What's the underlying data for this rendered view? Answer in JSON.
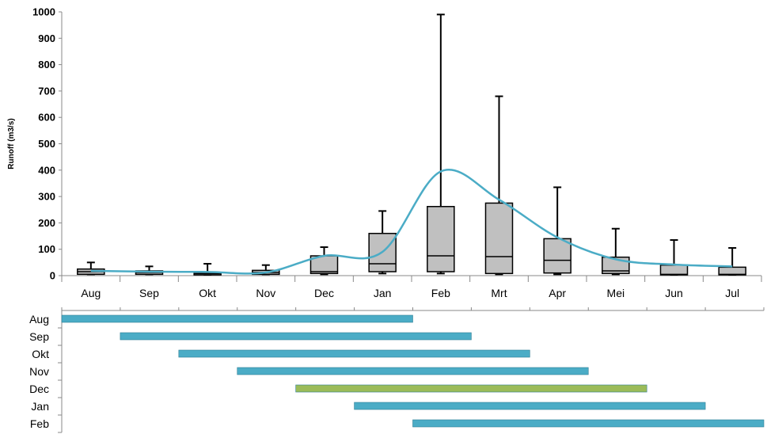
{
  "chart_data": [
    {
      "type": "boxplot",
      "ylabel": "Runoff (m3/s)",
      "ylim": [
        0,
        1000
      ],
      "yticks": [
        0,
        100,
        200,
        300,
        400,
        500,
        600,
        700,
        800,
        900,
        1000
      ],
      "grid": false,
      "categories": [
        "Aug",
        "Sep",
        "Okt",
        "Nov",
        "Dec",
        "Jan",
        "Feb",
        "Mrt",
        "Apr",
        "Mei",
        "Jun",
        "Jul"
      ],
      "boxes": [
        {
          "min": 5,
          "q1": 5,
          "median": 15,
          "q3": 25,
          "max": 50
        },
        {
          "min": 5,
          "q1": 5,
          "median": 12,
          "q3": 18,
          "max": 35
        },
        {
          "min": 3,
          "q1": 3,
          "median": 8,
          "q3": 12,
          "max": 45
        },
        {
          "min": 5,
          "q1": 5,
          "median": 12,
          "q3": 20,
          "max": 40
        },
        {
          "min": 5,
          "q1": 8,
          "median": 15,
          "q3": 75,
          "max": 108
        },
        {
          "min": 8,
          "q1": 15,
          "median": 45,
          "q3": 160,
          "max": 245
        },
        {
          "min": 8,
          "q1": 15,
          "median": 75,
          "q3": 262,
          "max": 990
        },
        {
          "min": 5,
          "q1": 8,
          "median": 72,
          "q3": 275,
          "max": 680
        },
        {
          "min": 5,
          "q1": 10,
          "median": 58,
          "q3": 140,
          "max": 335
        },
        {
          "min": 5,
          "q1": 8,
          "median": 18,
          "q3": 70,
          "max": 178
        },
        {
          "min": 3,
          "q1": 3,
          "median": 5,
          "q3": 40,
          "max": 135
        },
        {
          "min": 3,
          "q1": 3,
          "median": 5,
          "q3": 32,
          "max": 105
        }
      ],
      "mean_line": {
        "color": "#4bacc6",
        "values": [
          18,
          15,
          14,
          12,
          75,
          90,
          395,
          288,
          145,
          62,
          42,
          35
        ]
      },
      "box_fill": "#c0c0c0",
      "box_stroke": "#000000"
    },
    {
      "type": "gantt",
      "rows": [
        {
          "label": "Aug",
          "start": 0,
          "end": 6,
          "color": "#4bacc6"
        },
        {
          "label": "Sep",
          "start": 1,
          "end": 7,
          "color": "#4bacc6"
        },
        {
          "label": "Okt",
          "start": 2,
          "end": 8,
          "color": "#4bacc6"
        },
        {
          "label": "Nov",
          "start": 3,
          "end": 9,
          "color": "#4bacc6"
        },
        {
          "label": "Dec",
          "start": 4,
          "end": 10,
          "color": "#9bbb59"
        },
        {
          "label": "Jan",
          "start": 5,
          "end": 11,
          "color": "#4bacc6"
        },
        {
          "label": "Feb",
          "start": 6,
          "end": 12,
          "color": "#4bacc6"
        }
      ]
    }
  ]
}
